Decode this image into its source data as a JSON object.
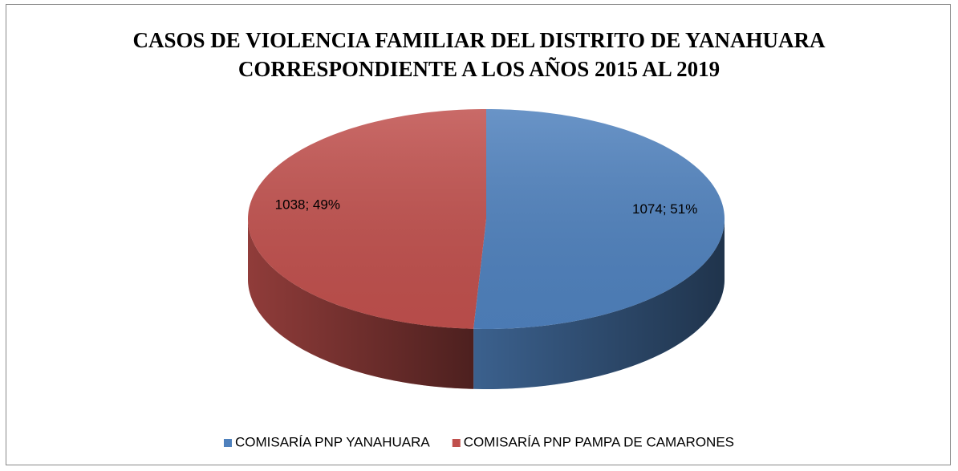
{
  "chart_data": {
    "type": "pie",
    "title": "CASOS DE VIOLENCIA FAMILIAR DEL DISTRITO DE YANAHUARA CORRESPONDIENTE A LOS AÑOS 2015 AL 2019",
    "categories": [
      "COMISARÍA PNP YANAHUARA",
      "COMISARÍA PNP PAMPA DE CAMARONES"
    ],
    "values": [
      1074,
      1038
    ],
    "value_labels": [
      "1074; 51%",
      "1038; 49%"
    ],
    "colors": [
      "#4f81bd",
      "#c0504d"
    ],
    "legend": "bottom"
  }
}
